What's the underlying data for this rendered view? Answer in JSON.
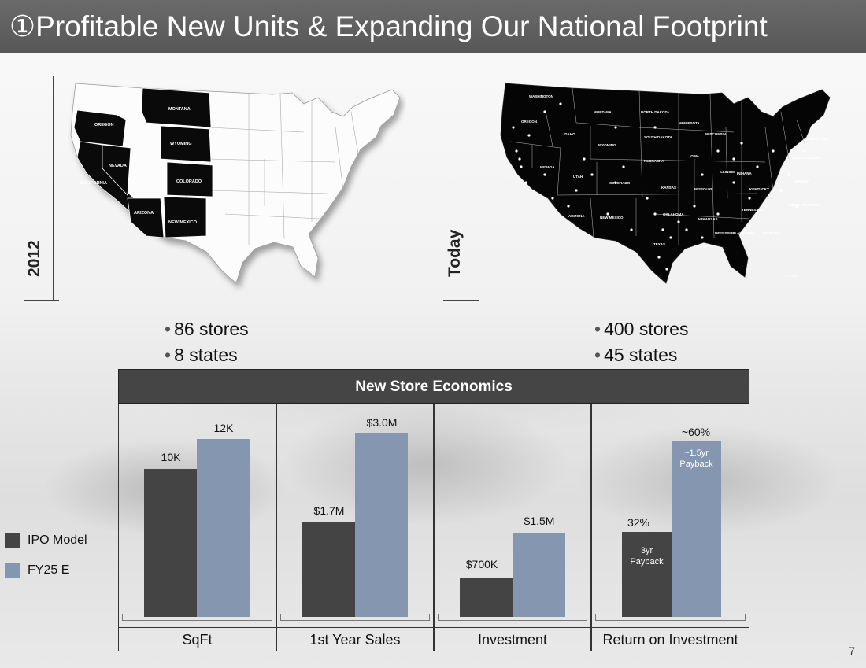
{
  "slide": {
    "title": "①Profitable New Units & Expanding Our National Footprint",
    "page_number": "7"
  },
  "maps": {
    "left": {
      "year_label": "2012",
      "states_labeled": [
        "OREGON",
        "MONTANA",
        "WYOMING",
        "NEVADA",
        "CALIFORNIA",
        "COLORADO",
        "ARIZONA",
        "NEW MEXICO"
      ],
      "stats": [
        "86 stores",
        "8 states"
      ]
    },
    "right": {
      "year_label": "Today",
      "stats": [
        "400 stores",
        "45 states"
      ]
    }
  },
  "economics": {
    "header": "New Store Economics",
    "legend": [
      {
        "label": "IPO Model",
        "color": "#444444"
      },
      {
        "label": "FY25 E",
        "color": "#8496b0"
      }
    ],
    "panels": [
      {
        "label": "SqFt",
        "ipo_label": "10K",
        "fy_label": "12K"
      },
      {
        "label": "1st Year Sales",
        "ipo_label": "$1.7M",
        "fy_label": "$3.0M"
      },
      {
        "label": "Investment",
        "ipo_label": "$700K",
        "fy_label": "$1.5M"
      },
      {
        "label": "Return on Investment",
        "ipo_label": "32%",
        "fy_label": "~60%",
        "ipo_note_1": "3yr",
        "ipo_note_2": "Payback",
        "fy_note_1": "~1.5yr",
        "fy_note_2": "Payback"
      }
    ]
  },
  "chart_data": [
    {
      "type": "bar",
      "title": "SqFt",
      "categories": [
        "SqFt"
      ],
      "series": [
        {
          "name": "IPO Model",
          "values": [
            10
          ]
        },
        {
          "name": "FY25 E",
          "values": [
            12
          ]
        }
      ],
      "unit": "K"
    },
    {
      "type": "bar",
      "title": "1st Year Sales",
      "categories": [
        "1st Year Sales"
      ],
      "series": [
        {
          "name": "IPO Model",
          "values": [
            1.7
          ]
        },
        {
          "name": "FY25 E",
          "values": [
            3.0
          ]
        }
      ],
      "unit": "$M"
    },
    {
      "type": "bar",
      "title": "Investment",
      "categories": [
        "Investment"
      ],
      "series": [
        {
          "name": "IPO Model",
          "values": [
            700
          ]
        },
        {
          "name": "FY25 E",
          "values": [
            1500
          ]
        }
      ],
      "unit": "$K"
    },
    {
      "type": "bar",
      "title": "Return on Investment",
      "categories": [
        "Return on Investment"
      ],
      "series": [
        {
          "name": "IPO Model",
          "values": [
            32
          ]
        },
        {
          "name": "FY25 E",
          "values": [
            60
          ]
        }
      ],
      "unit": "%"
    }
  ]
}
